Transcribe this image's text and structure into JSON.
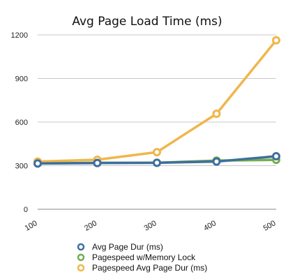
{
  "chart_data": {
    "type": "line",
    "title": "Avg Page Load Time (ms)",
    "xlabel": "",
    "ylabel": "",
    "categories": [
      "100",
      "200",
      "300",
      "400",
      "500"
    ],
    "x": [
      100,
      200,
      300,
      400,
      500
    ],
    "xlim": [
      100,
      500
    ],
    "ylim": [
      0,
      1200
    ],
    "yticks": [
      0,
      300,
      600,
      900,
      1200
    ],
    "yticks_labels": [
      "0",
      "300",
      "600",
      "900",
      "1200"
    ],
    "grid": true,
    "legend_position": "bottom",
    "series": [
      {
        "name": "Pagespeed Avg Page Dur (ms)",
        "color": "#F0B64C",
        "values": [
          328,
          341,
          393,
          657,
          1163
        ]
      },
      {
        "name": "Pagespeed w/Memory Lock",
        "color": "#72AD4E",
        "values": [
          315,
          320,
          320,
          335,
          340
        ]
      },
      {
        "name": "Avg Page Dur (ms)",
        "color": "#3F6F9D",
        "values": [
          315,
          318,
          320,
          328,
          365
        ]
      }
    ],
    "legend_order": [
      2,
      1,
      0
    ]
  }
}
